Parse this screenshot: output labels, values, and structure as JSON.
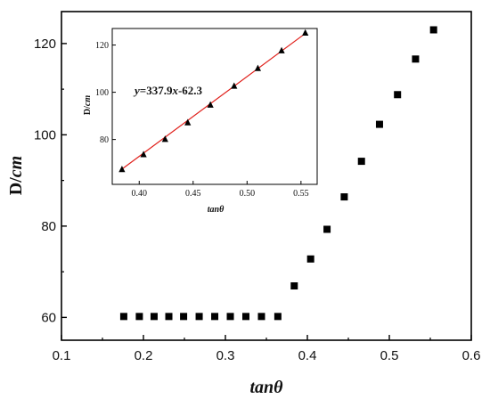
{
  "chart_data": [
    {
      "type": "scatter",
      "xlabel": "tanθ",
      "ylabel_prefix": "D/",
      "ylabel_unit": "cm",
      "xlim": [
        0.1,
        0.6
      ],
      "ylim": [
        55,
        127
      ],
      "x_ticks": [
        0.1,
        0.2,
        0.3,
        0.4,
        0.5,
        0.6
      ],
      "x_tick_labels": [
        "0.1",
        "0.2",
        "0.3",
        "0.4",
        "0.5",
        "0.6"
      ],
      "y_ticks": [
        60,
        80,
        100,
        120
      ],
      "y_tick_labels": [
        "60",
        "80",
        "100",
        "120"
      ],
      "marker": "square",
      "marker_color": "#000000",
      "series": [
        {
          "x": [
            0.176,
            0.195,
            0.213,
            0.231,
            0.249,
            0.268,
            0.287,
            0.306,
            0.325,
            0.344,
            0.364,
            0.384,
            0.404,
            0.424,
            0.445,
            0.466,
            0.488,
            0.51,
            0.532,
            0.554
          ],
          "y": [
            60.2,
            60.2,
            60.2,
            60.2,
            60.2,
            60.2,
            60.2,
            60.2,
            60.2,
            60.2,
            60.2,
            66.9,
            72.8,
            79.3,
            86.4,
            94.2,
            102.3,
            108.8,
            116.6,
            123.0
          ]
        }
      ]
    },
    {
      "type": "scatter",
      "role": "inset",
      "xlabel": "tanθ",
      "ylabel_prefix": "D/",
      "ylabel_unit": "cm",
      "xlim": [
        0.375,
        0.565
      ],
      "ylim": [
        61,
        127
      ],
      "x_ticks": [
        0.4,
        0.45,
        0.5,
        0.55
      ],
      "x_tick_labels": [
        "0.40",
        "0.45",
        "0.50",
        "0.55"
      ],
      "y_ticks": [
        80,
        100,
        120
      ],
      "y_tick_labels": [
        "80",
        "100",
        "120"
      ],
      "marker": "triangle",
      "marker_color": "#000000",
      "fit_color": "#e0201b",
      "fit": {
        "slope": 337.9,
        "intercept": -62.3
      },
      "equation": {
        "y": "y",
        "eq": "=337.9",
        "x": "x",
        "rest": "-62.3"
      },
      "series": [
        {
          "x": [
            0.384,
            0.404,
            0.424,
            0.445,
            0.466,
            0.488,
            0.51,
            0.532,
            0.554
          ],
          "y": [
            67.2,
            73.5,
            80.0,
            87.0,
            94.5,
            102.5,
            110.0,
            117.5,
            125.0
          ]
        }
      ]
    }
  ]
}
